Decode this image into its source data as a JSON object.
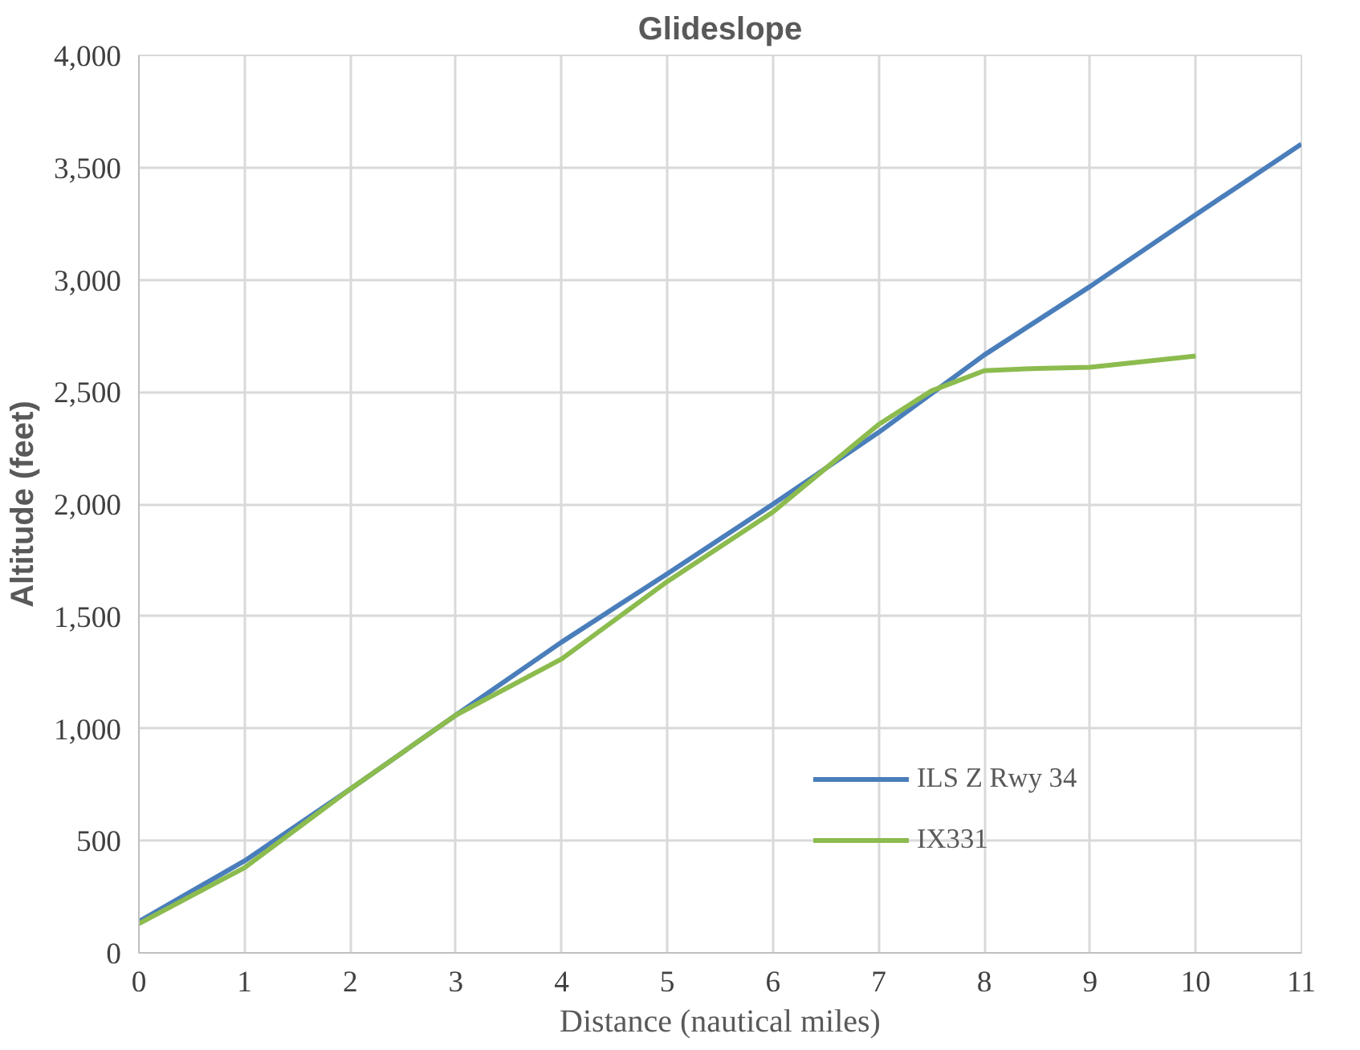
{
  "chart_data": {
    "type": "line",
    "title": "Glideslope",
    "xlabel": "Distance (nautical miles)",
    "ylabel": "Altitude (feet)",
    "series": [
      {
        "name": "ILS Z Rwy 34",
        "color": "#4a7ebb",
        "x": [
          0,
          1,
          2,
          3,
          4,
          5,
          6,
          7,
          8,
          9,
          10,
          11
        ],
        "values": [
          140,
          410,
          730,
          1060,
          1385,
          1690,
          2000,
          2320,
          2665,
          2970,
          3290,
          3605
        ]
      },
      {
        "name": "IX331",
        "color": "#8cbb4e",
        "x": [
          0,
          1,
          2,
          3,
          4,
          5,
          6,
          7,
          7.5,
          8,
          8.5,
          9,
          10
        ],
        "values": [
          130,
          380,
          730,
          1060,
          1310,
          1655,
          1965,
          2355,
          2505,
          2595,
          2605,
          2610,
          2660
        ]
      }
    ],
    "xlim": [
      0,
      11
    ],
    "xticks": [
      0,
      1,
      2,
      3,
      4,
      5,
      6,
      7,
      8,
      9,
      10,
      11
    ],
    "ylim": [
      0,
      4000
    ],
    "yticks": [
      {
        "value": 0,
        "label": "0"
      },
      {
        "value": 500,
        "label": "500"
      },
      {
        "value": 1000,
        "label": "1,000"
      },
      {
        "value": 1500,
        "label": "1,500"
      },
      {
        "value": 2000,
        "label": "2,000"
      },
      {
        "value": 2500,
        "label": "2,500"
      },
      {
        "value": 3000,
        "label": "3,000"
      },
      {
        "value": 3500,
        "label": "3,500"
      },
      {
        "value": 4000,
        "label": "4,000"
      }
    ],
    "grid": true,
    "legend": "right",
    "marker": "none",
    "line_style": "solid"
  }
}
